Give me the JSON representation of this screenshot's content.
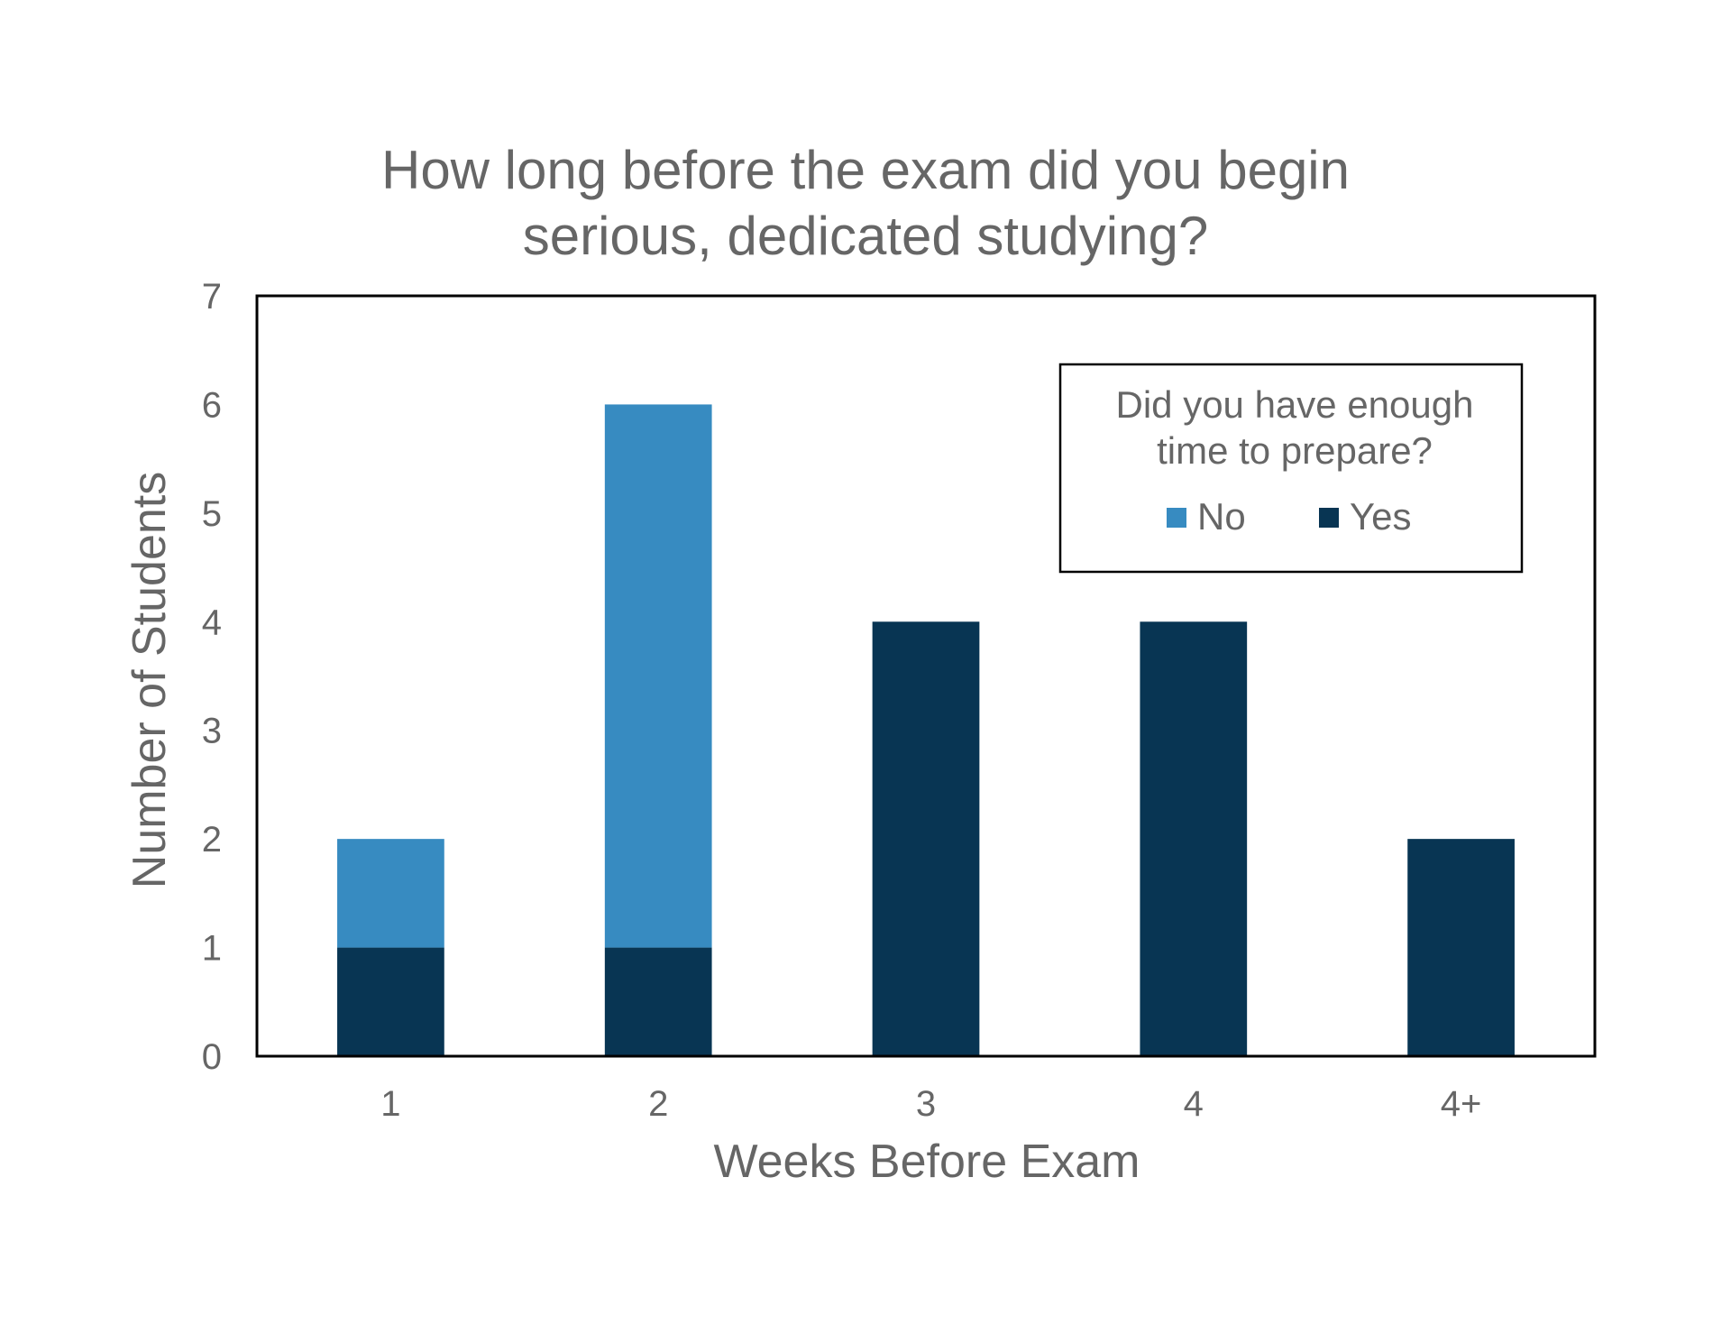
{
  "chart_data": {
    "type": "bar",
    "stacked": true,
    "title_lines": [
      "How long before the exam did you begin",
      "serious, dedicated studying?"
    ],
    "xlabel": "Weeks Before Exam",
    "ylabel": "Number of Students",
    "categories": [
      "1",
      "2",
      "3",
      "4",
      "4+"
    ],
    "series": [
      {
        "name": "Yes",
        "color": "#083553",
        "values": [
          1,
          1,
          4,
          4,
          2
        ]
      },
      {
        "name": "No",
        "color": "#378BC1",
        "values": [
          1,
          5,
          0,
          0,
          0
        ]
      }
    ],
    "ylim": [
      0,
      7
    ],
    "yticks": [
      "0",
      "1",
      "2",
      "3",
      "4",
      "5",
      "6",
      "7"
    ],
    "grid": false,
    "legend": {
      "title_lines": [
        "Did you have enough",
        "time to prepare?"
      ],
      "order": [
        "No",
        "Yes"
      ],
      "position": "top-right"
    }
  }
}
